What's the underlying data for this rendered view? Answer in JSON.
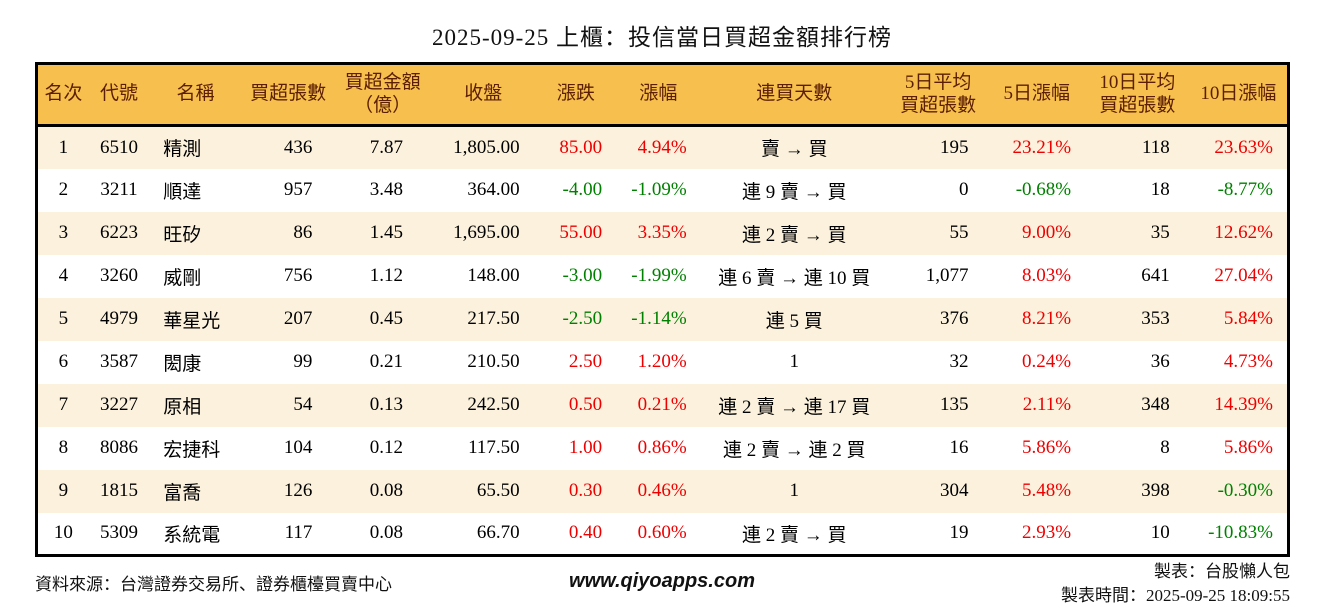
{
  "title": "2025-09-25 上櫃：投信當日買超金額排行榜",
  "colors": {
    "up_red": "#ee0000",
    "down_green": "#008000",
    "header_bg": "#f6bf4e",
    "header_text": "#5c1e00",
    "row_stripe_bg": "#fbf1dc",
    "border": "#000000"
  },
  "table": {
    "columns": [
      {
        "key": "rank",
        "label": "名次",
        "align": "center",
        "colored": false
      },
      {
        "key": "code",
        "label": "代號",
        "align": "center",
        "colored": false
      },
      {
        "key": "name",
        "label": "名稱",
        "align": "left",
        "colored": false
      },
      {
        "key": "shares",
        "label": "買超張數",
        "align": "right",
        "colored": false
      },
      {
        "key": "amount",
        "label": "買超金額\n（億）",
        "align": "right",
        "colored": false
      },
      {
        "key": "close",
        "label": "收盤",
        "align": "right",
        "colored": false
      },
      {
        "key": "change",
        "label": "漲跌",
        "align": "right",
        "colored": true
      },
      {
        "key": "change_pct",
        "label": "漲幅",
        "align": "right",
        "colored": true
      },
      {
        "key": "streak",
        "label": "連買天數",
        "align": "center",
        "colored": false
      },
      {
        "key": "avg5",
        "label": "5日平均\n買超張數",
        "align": "right",
        "colored": false
      },
      {
        "key": "pct5",
        "label": "5日漲幅",
        "align": "right",
        "colored": true
      },
      {
        "key": "avg10",
        "label": "10日平均\n買超張數",
        "align": "right",
        "colored": false
      },
      {
        "key": "pct10",
        "label": "10日漲幅",
        "align": "right",
        "colored": true
      }
    ],
    "rows": [
      {
        "rank": "1",
        "code": "6510",
        "name": "精測",
        "shares": "436",
        "amount": "7.87",
        "close": "1,805.00",
        "change": "85.00",
        "change_pct": "4.94%",
        "streak": "賣 → 買",
        "avg5": "195",
        "pct5": "23.21%",
        "avg10": "118",
        "pct10": "23.63%"
      },
      {
        "rank": "2",
        "code": "3211",
        "name": "順達",
        "shares": "957",
        "amount": "3.48",
        "close": "364.00",
        "change": "-4.00",
        "change_pct": "-1.09%",
        "streak": "連 9 賣 → 買",
        "avg5": "0",
        "pct5": "-0.68%",
        "avg10": "18",
        "pct10": "-8.77%"
      },
      {
        "rank": "3",
        "code": "6223",
        "name": "旺矽",
        "shares": "86",
        "amount": "1.45",
        "close": "1,695.00",
        "change": "55.00",
        "change_pct": "3.35%",
        "streak": "連 2 賣 → 買",
        "avg5": "55",
        "pct5": "9.00%",
        "avg10": "35",
        "pct10": "12.62%"
      },
      {
        "rank": "4",
        "code": "3260",
        "name": "威剛",
        "shares": "756",
        "amount": "1.12",
        "close": "148.00",
        "change": "-3.00",
        "change_pct": "-1.99%",
        "streak": "連 6 賣 → 連 10 買",
        "avg5": "1,077",
        "pct5": "8.03%",
        "avg10": "641",
        "pct10": "27.04%"
      },
      {
        "rank": "5",
        "code": "4979",
        "name": "華星光",
        "shares": "207",
        "amount": "0.45",
        "close": "217.50",
        "change": "-2.50",
        "change_pct": "-1.14%",
        "streak": "連 5 買",
        "avg5": "376",
        "pct5": "8.21%",
        "avg10": "353",
        "pct10": "5.84%"
      },
      {
        "rank": "6",
        "code": "3587",
        "name": "閎康",
        "shares": "99",
        "amount": "0.21",
        "close": "210.50",
        "change": "2.50",
        "change_pct": "1.20%",
        "streak": "1",
        "avg5": "32",
        "pct5": "0.24%",
        "avg10": "36",
        "pct10": "4.73%"
      },
      {
        "rank": "7",
        "code": "3227",
        "name": "原相",
        "shares": "54",
        "amount": "0.13",
        "close": "242.50",
        "change": "0.50",
        "change_pct": "0.21%",
        "streak": "連 2 賣 → 連 17 買",
        "avg5": "135",
        "pct5": "2.11%",
        "avg10": "348",
        "pct10": "14.39%"
      },
      {
        "rank": "8",
        "code": "8086",
        "name": "宏捷科",
        "shares": "104",
        "amount": "0.12",
        "close": "117.50",
        "change": "1.00",
        "change_pct": "0.86%",
        "streak": "連 2 賣 → 連 2 買",
        "avg5": "16",
        "pct5": "5.86%",
        "avg10": "8",
        "pct10": "5.86%"
      },
      {
        "rank": "9",
        "code": "1815",
        "name": "富喬",
        "shares": "126",
        "amount": "0.08",
        "close": "65.50",
        "change": "0.30",
        "change_pct": "0.46%",
        "streak": "1",
        "avg5": "304",
        "pct5": "5.48%",
        "avg10": "398",
        "pct10": "-0.30%"
      },
      {
        "rank": "10",
        "code": "5309",
        "name": "系統電",
        "shares": "117",
        "amount": "0.08",
        "close": "66.70",
        "change": "0.40",
        "change_pct": "0.60%",
        "streak": "連 2 賣 → 買",
        "avg5": "19",
        "pct5": "2.93%",
        "avg10": "10",
        "pct10": "-10.83%"
      }
    ]
  },
  "footer": {
    "source": "資料來源：台灣證券交易所、證券櫃檯買賣中心",
    "website": "www.qiyoapps.com",
    "maker": "製表：台股懶人包",
    "generated_at": "製表時間：2025-09-25 18:09:55"
  }
}
